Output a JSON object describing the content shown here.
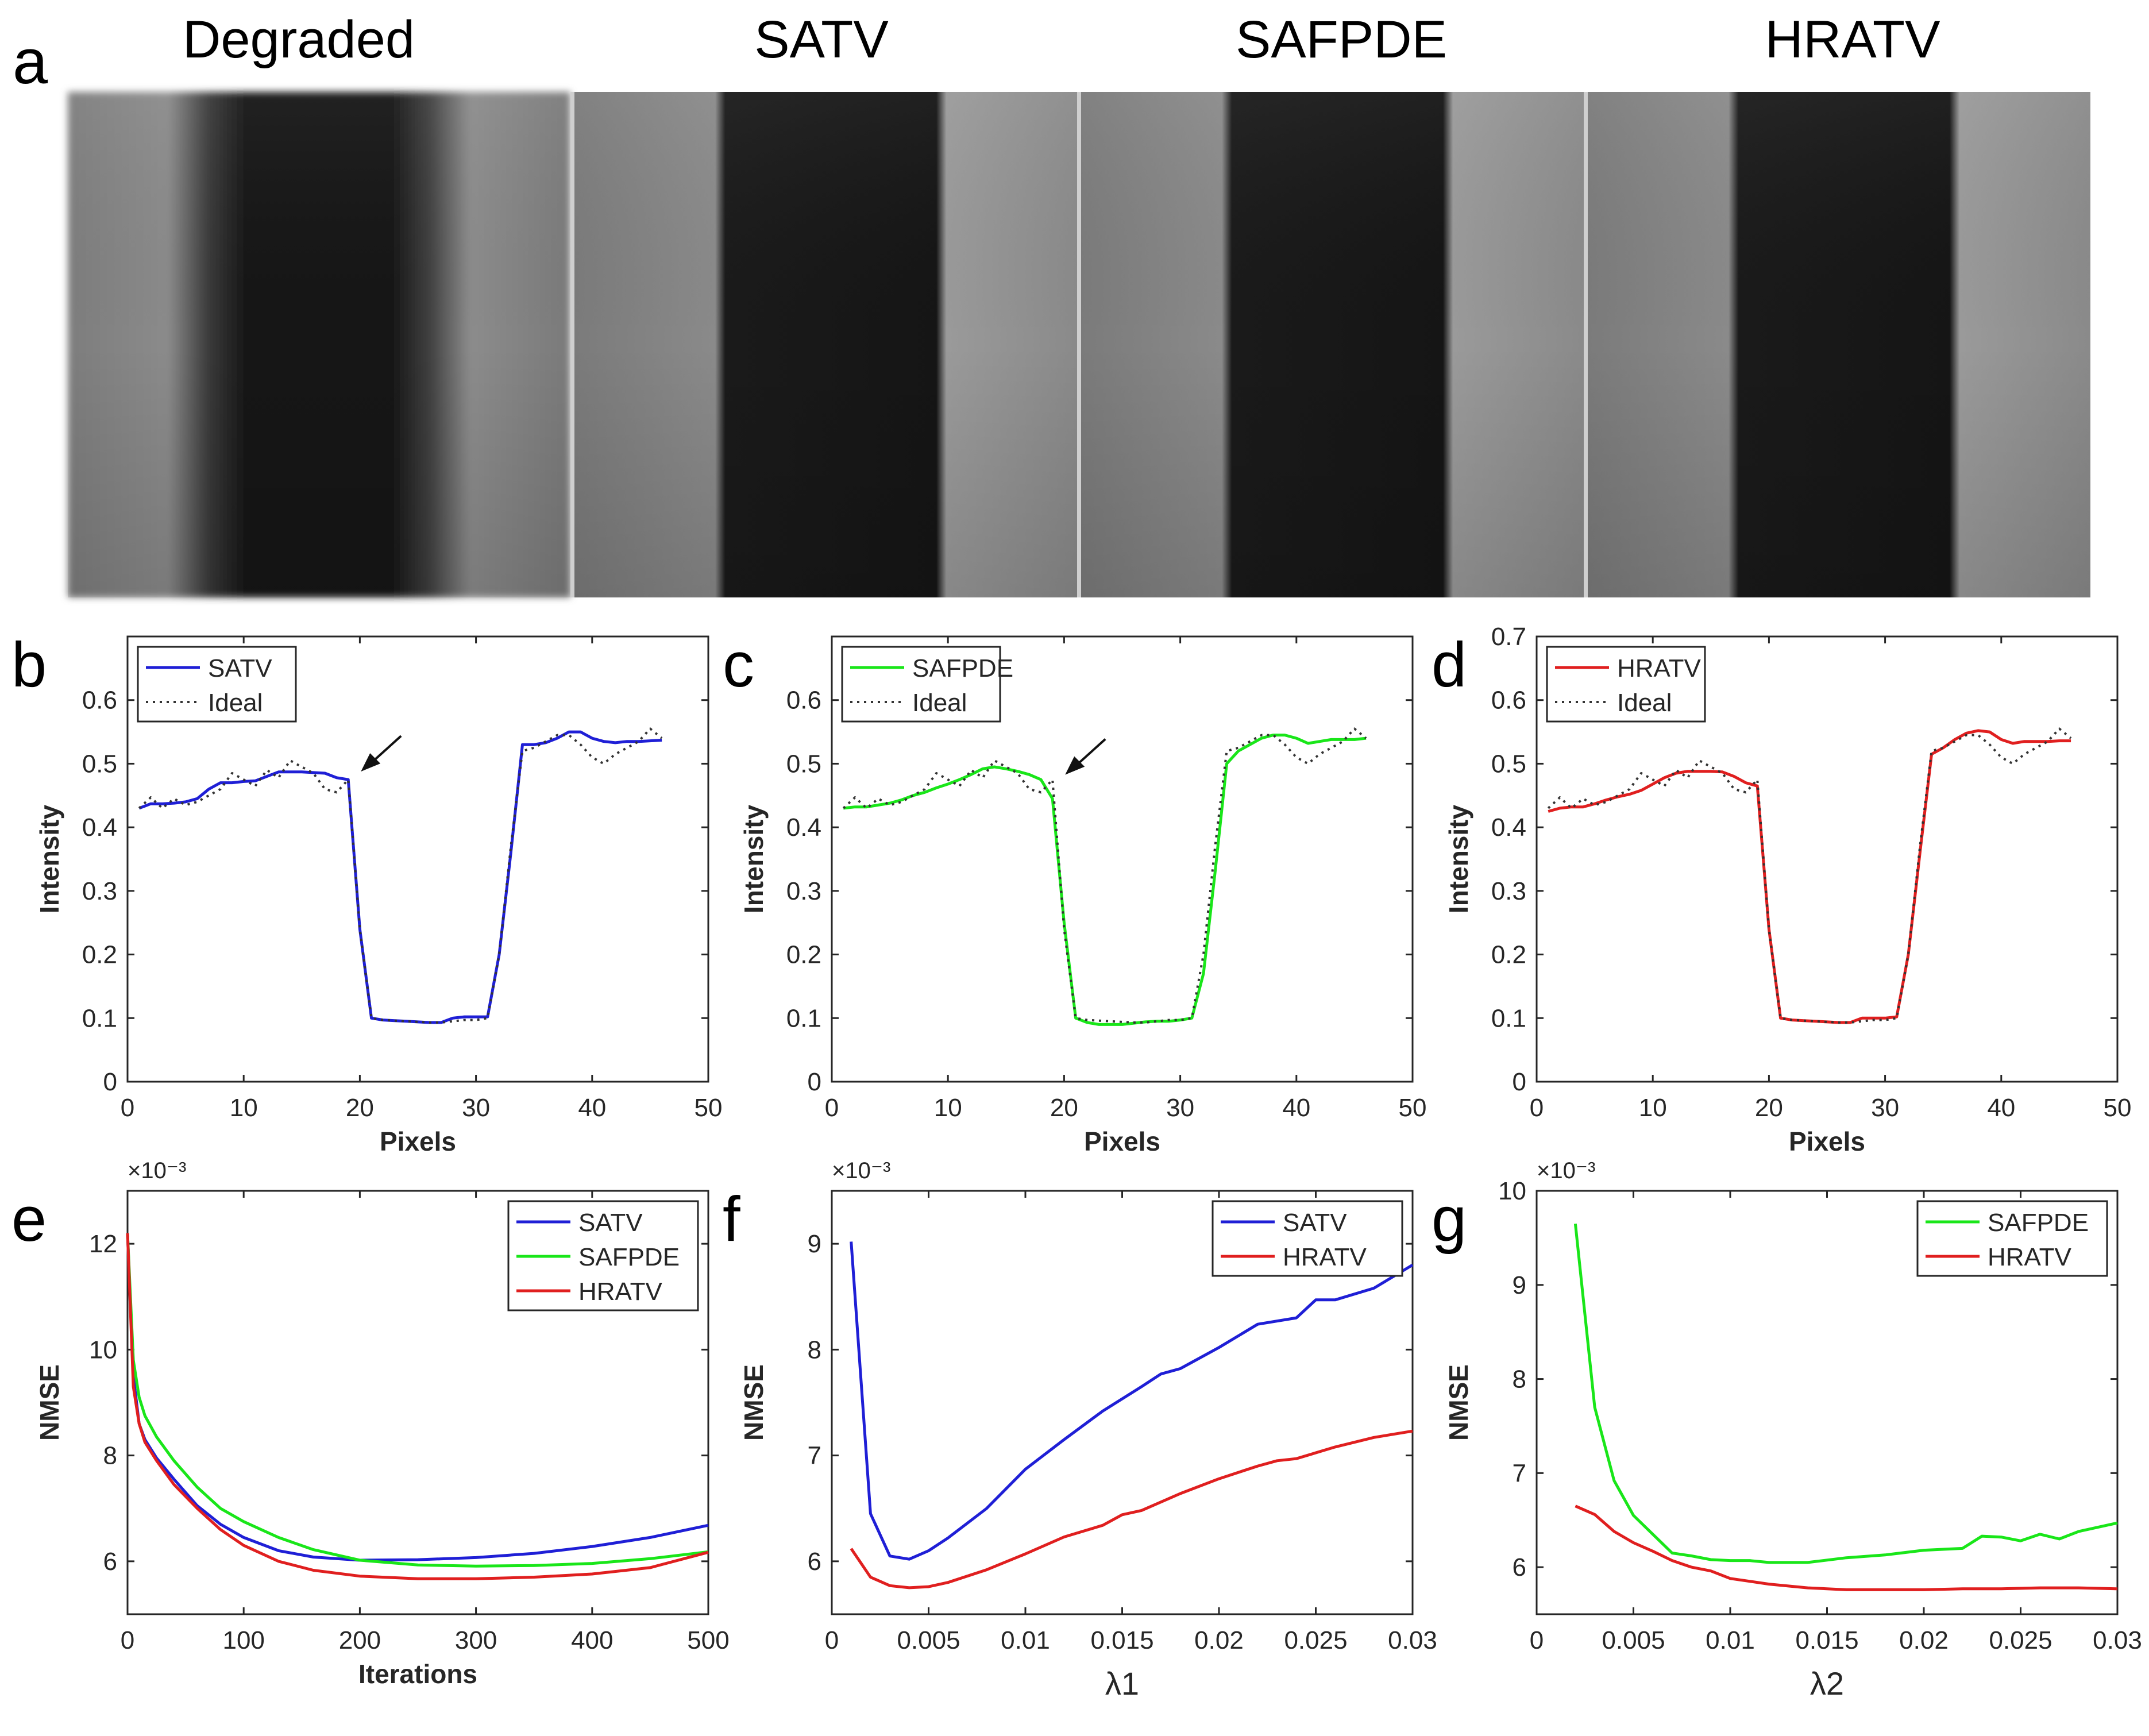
{
  "panel_a": {
    "letter": "a",
    "titles": [
      "Degraded",
      "SATV",
      "SAFPDE",
      "HRATV"
    ]
  },
  "chart_data": [
    {
      "id": "b",
      "letter": "b",
      "type": "line",
      "xlabel": "Pixels",
      "ylabel": "Intensity",
      "xlim": [
        0,
        50
      ],
      "ylim": [
        0,
        0.7
      ],
      "xticks": [
        0,
        10,
        20,
        30,
        40,
        50
      ],
      "yticks": [
        0,
        0.1,
        0.2,
        0.3,
        0.4,
        0.5,
        0.6
      ],
      "legend_position": "top-left",
      "annotation": {
        "type": "arrow",
        "at": [
          19,
          0.475
        ]
      },
      "series": [
        {
          "name": "SATV",
          "color": "#1f1fd6",
          "style": "solid",
          "x": [
            1,
            2,
            3,
            4,
            5,
            6,
            7,
            8,
            9,
            10,
            11,
            12,
            13,
            14,
            15,
            16,
            17,
            18,
            19,
            20,
            21,
            22,
            23,
            24,
            25,
            26,
            27,
            28,
            29,
            30,
            31,
            32,
            33,
            34,
            35,
            36,
            37,
            38,
            39,
            40,
            41,
            42,
            43,
            44,
            45,
            46
          ],
          "y": [
            0.43,
            0.437,
            0.437,
            0.438,
            0.44,
            0.445,
            0.46,
            0.47,
            0.47,
            0.472,
            0.473,
            0.48,
            0.487,
            0.487,
            0.487,
            0.486,
            0.485,
            0.478,
            0.475,
            0.24,
            0.1,
            0.097,
            0.096,
            0.095,
            0.094,
            0.093,
            0.093,
            0.1,
            0.102,
            0.102,
            0.102,
            0.2,
            0.36,
            0.53,
            0.53,
            0.533,
            0.54,
            0.55,
            0.55,
            0.54,
            0.535,
            0.533,
            0.535,
            0.535,
            0.536,
            0.537
          ]
        },
        {
          "name": "Ideal",
          "color": "#333333",
          "style": "dotted",
          "x": [
            1,
            2,
            3,
            4,
            5,
            6,
            7,
            8,
            9,
            10,
            11,
            12,
            13,
            14,
            15,
            16,
            17,
            18,
            19,
            20,
            21,
            22,
            23,
            24,
            25,
            26,
            27,
            28,
            29,
            30,
            31,
            32,
            33,
            34,
            35,
            36,
            37,
            38,
            39,
            40,
            41,
            42,
            43,
            44,
            45,
            46
          ],
          "y": [
            0.43,
            0.447,
            0.43,
            0.445,
            0.435,
            0.44,
            0.45,
            0.46,
            0.485,
            0.475,
            0.465,
            0.49,
            0.478,
            0.505,
            0.495,
            0.485,
            0.46,
            0.455,
            0.475,
            0.24,
            0.1,
            0.097,
            0.096,
            0.095,
            0.094,
            0.093,
            0.093,
            0.095,
            0.097,
            0.097,
            0.1,
            0.2,
            0.37,
            0.52,
            0.525,
            0.535,
            0.545,
            0.545,
            0.53,
            0.51,
            0.5,
            0.515,
            0.525,
            0.535,
            0.555,
            0.54
          ]
        }
      ]
    },
    {
      "id": "c",
      "letter": "c",
      "type": "line",
      "xlabel": "Pixels",
      "ylabel": "Intensity",
      "xlim": [
        0,
        50
      ],
      "ylim": [
        0,
        0.7
      ],
      "xticks": [
        0,
        10,
        20,
        30,
        40,
        50
      ],
      "yticks": [
        0,
        0.1,
        0.2,
        0.3,
        0.4,
        0.5,
        0.6
      ],
      "legend_position": "top-left",
      "annotation": {
        "type": "arrow",
        "at": [
          19,
          0.47
        ]
      },
      "series": [
        {
          "name": "SAFPDE",
          "color": "#19e619",
          "style": "solid",
          "x": [
            1,
            2,
            3,
            4,
            5,
            6,
            7,
            8,
            9,
            10,
            11,
            12,
            13,
            14,
            15,
            16,
            17,
            18,
            19,
            20,
            21,
            22,
            23,
            24,
            25,
            26,
            27,
            28,
            29,
            30,
            31,
            32,
            33,
            34,
            35,
            36,
            37,
            38,
            39,
            40,
            41,
            42,
            43,
            44,
            45,
            46
          ],
          "y": [
            0.43,
            0.432,
            0.432,
            0.435,
            0.438,
            0.443,
            0.45,
            0.455,
            0.462,
            0.468,
            0.475,
            0.483,
            0.492,
            0.495,
            0.492,
            0.488,
            0.483,
            0.475,
            0.445,
            0.25,
            0.1,
            0.093,
            0.09,
            0.09,
            0.09,
            0.092,
            0.094,
            0.095,
            0.095,
            0.097,
            0.1,
            0.17,
            0.33,
            0.5,
            0.52,
            0.53,
            0.54,
            0.545,
            0.545,
            0.54,
            0.532,
            0.535,
            0.538,
            0.538,
            0.538,
            0.54
          ]
        },
        {
          "name": "Ideal",
          "color": "#333333",
          "style": "dotted",
          "x": [
            1,
            2,
            3,
            4,
            5,
            6,
            7,
            8,
            9,
            10,
            11,
            12,
            13,
            14,
            15,
            16,
            17,
            18,
            19,
            20,
            21,
            22,
            23,
            24,
            25,
            26,
            27,
            28,
            29,
            30,
            31,
            32,
            33,
            34,
            35,
            36,
            37,
            38,
            39,
            40,
            41,
            42,
            43,
            44,
            45,
            46
          ],
          "y": [
            0.43,
            0.447,
            0.43,
            0.445,
            0.435,
            0.44,
            0.45,
            0.46,
            0.485,
            0.475,
            0.465,
            0.49,
            0.478,
            0.505,
            0.495,
            0.485,
            0.46,
            0.455,
            0.475,
            0.24,
            0.1,
            0.097,
            0.096,
            0.095,
            0.094,
            0.093,
            0.093,
            0.095,
            0.097,
            0.097,
            0.1,
            0.2,
            0.37,
            0.52,
            0.525,
            0.535,
            0.545,
            0.545,
            0.53,
            0.51,
            0.5,
            0.515,
            0.525,
            0.535,
            0.555,
            0.54
          ]
        }
      ]
    },
    {
      "id": "d",
      "letter": "d",
      "type": "line",
      "xlabel": "Pixels",
      "ylabel": "Intensity",
      "xlim": [
        0,
        50
      ],
      "ylim": [
        0,
        0.7
      ],
      "xticks": [
        0,
        10,
        20,
        30,
        40,
        50
      ],
      "yticks": [
        0,
        0.1,
        0.2,
        0.3,
        0.4,
        0.5,
        0.6,
        0.7
      ],
      "legend_position": "top-left",
      "series": [
        {
          "name": "HRATV",
          "color": "#e01f1f",
          "style": "solid",
          "x": [
            1,
            2,
            3,
            4,
            5,
            6,
            7,
            8,
            9,
            10,
            11,
            12,
            13,
            14,
            15,
            16,
            17,
            18,
            19,
            20,
            21,
            22,
            23,
            24,
            25,
            26,
            27,
            28,
            29,
            30,
            31,
            32,
            33,
            34,
            35,
            36,
            37,
            38,
            39,
            40,
            41,
            42,
            43,
            44,
            45,
            46
          ],
          "y": [
            0.425,
            0.43,
            0.432,
            0.432,
            0.437,
            0.443,
            0.448,
            0.452,
            0.458,
            0.468,
            0.478,
            0.485,
            0.488,
            0.488,
            0.488,
            0.487,
            0.48,
            0.47,
            0.465,
            0.24,
            0.1,
            0.097,
            0.096,
            0.095,
            0.094,
            0.093,
            0.093,
            0.1,
            0.1,
            0.1,
            0.102,
            0.2,
            0.36,
            0.515,
            0.525,
            0.538,
            0.548,
            0.552,
            0.55,
            0.538,
            0.532,
            0.535,
            0.535,
            0.535,
            0.536,
            0.536
          ]
        },
        {
          "name": "Ideal",
          "color": "#333333",
          "style": "dotted",
          "x": [
            1,
            2,
            3,
            4,
            5,
            6,
            7,
            8,
            9,
            10,
            11,
            12,
            13,
            14,
            15,
            16,
            17,
            18,
            19,
            20,
            21,
            22,
            23,
            24,
            25,
            26,
            27,
            28,
            29,
            30,
            31,
            32,
            33,
            34,
            35,
            36,
            37,
            38,
            39,
            40,
            41,
            42,
            43,
            44,
            45,
            46
          ],
          "y": [
            0.43,
            0.447,
            0.43,
            0.445,
            0.435,
            0.44,
            0.45,
            0.46,
            0.485,
            0.475,
            0.465,
            0.49,
            0.478,
            0.505,
            0.495,
            0.485,
            0.46,
            0.455,
            0.475,
            0.24,
            0.1,
            0.097,
            0.096,
            0.095,
            0.094,
            0.093,
            0.093,
            0.095,
            0.097,
            0.097,
            0.1,
            0.2,
            0.37,
            0.52,
            0.525,
            0.535,
            0.545,
            0.545,
            0.53,
            0.51,
            0.5,
            0.515,
            0.525,
            0.535,
            0.555,
            0.54
          ]
        }
      ]
    },
    {
      "id": "e",
      "letter": "e",
      "type": "line",
      "xlabel": "Iterations",
      "ylabel": "NMSE",
      "scale_label": "×10⁻³",
      "xlim": [
        0,
        500
      ],
      "ylim": [
        5,
        13
      ],
      "xticks": [
        0,
        100,
        200,
        300,
        400,
        500
      ],
      "yticks": [
        6,
        8,
        10,
        12
      ],
      "legend_position": "top-right",
      "series": [
        {
          "name": "SATV",
          "color": "#1f1fd6",
          "style": "solid",
          "x": [
            0,
            5,
            10,
            15,
            25,
            40,
            60,
            80,
            100,
            130,
            160,
            200,
            250,
            300,
            350,
            400,
            450,
            500
          ],
          "y": [
            12.2,
            9.5,
            8.6,
            8.3,
            7.95,
            7.55,
            7.05,
            6.7,
            6.45,
            6.2,
            6.08,
            6.02,
            6.03,
            6.07,
            6.15,
            6.28,
            6.45,
            6.68
          ]
        },
        {
          "name": "SAFPDE",
          "color": "#19e619",
          "style": "solid",
          "x": [
            0,
            5,
            10,
            15,
            25,
            40,
            60,
            80,
            100,
            130,
            160,
            200,
            250,
            300,
            350,
            400,
            450,
            500
          ],
          "y": [
            12.2,
            9.8,
            9.1,
            8.75,
            8.35,
            7.9,
            7.4,
            7.0,
            6.75,
            6.45,
            6.22,
            6.02,
            5.93,
            5.91,
            5.92,
            5.96,
            6.05,
            6.18
          ]
        },
        {
          "name": "HRATV",
          "color": "#e01f1f",
          "style": "solid",
          "x": [
            0,
            5,
            10,
            15,
            25,
            40,
            60,
            80,
            100,
            130,
            160,
            200,
            250,
            300,
            350,
            400,
            450,
            500
          ],
          "y": [
            12.2,
            9.3,
            8.6,
            8.25,
            7.9,
            7.45,
            7.0,
            6.6,
            6.3,
            6.0,
            5.83,
            5.72,
            5.67,
            5.67,
            5.7,
            5.76,
            5.88,
            6.17
          ]
        }
      ]
    },
    {
      "id": "f",
      "letter": "f",
      "type": "line",
      "xlabel": "λ1",
      "ylabel": "NMSE",
      "scale_label": "×10⁻³",
      "xlim": [
        0,
        0.03
      ],
      "ylim": [
        5.5,
        9.5
      ],
      "xticks": [
        0,
        0.005,
        0.01,
        0.015,
        0.02,
        0.025,
        0.03
      ],
      "yticks": [
        6,
        7,
        8,
        9
      ],
      "legend_position": "top-right",
      "series": [
        {
          "name": "SATV",
          "color": "#1f1fd6",
          "style": "solid",
          "x": [
            0.001,
            0.002,
            0.003,
            0.004,
            0.005,
            0.006,
            0.008,
            0.01,
            0.012,
            0.014,
            0.016,
            0.017,
            0.018,
            0.02,
            0.022,
            0.024,
            0.025,
            0.026,
            0.028,
            0.03
          ],
          "y": [
            9.02,
            6.45,
            6.05,
            6.02,
            6.1,
            6.22,
            6.5,
            6.87,
            7.15,
            7.42,
            7.65,
            7.77,
            7.82,
            8.02,
            8.24,
            8.3,
            8.47,
            8.47,
            8.58,
            8.8
          ]
        },
        {
          "name": "HRATV",
          "color": "#e01f1f",
          "style": "solid",
          "x": [
            0.001,
            0.002,
            0.003,
            0.004,
            0.005,
            0.006,
            0.008,
            0.01,
            0.012,
            0.014,
            0.015,
            0.016,
            0.018,
            0.02,
            0.022,
            0.023,
            0.024,
            0.026,
            0.028,
            0.03
          ],
          "y": [
            6.12,
            5.85,
            5.77,
            5.75,
            5.76,
            5.8,
            5.92,
            6.07,
            6.23,
            6.34,
            6.44,
            6.48,
            6.64,
            6.78,
            6.9,
            6.95,
            6.97,
            7.08,
            7.17,
            7.23
          ]
        }
      ]
    },
    {
      "id": "g",
      "letter": "g",
      "type": "line",
      "xlabel": "λ2",
      "ylabel": "NMSE",
      "scale_label": "×10⁻³",
      "xlim": [
        0,
        0.03
      ],
      "ylim": [
        5.5,
        10
      ],
      "xticks": [
        0,
        0.005,
        0.01,
        0.015,
        0.02,
        0.025,
        0.03
      ],
      "yticks": [
        6,
        7,
        8,
        9,
        10
      ],
      "legend_position": "top-right",
      "series": [
        {
          "name": "SAFPDE",
          "color": "#19e619",
          "style": "solid",
          "x": [
            0.002,
            0.003,
            0.004,
            0.005,
            0.006,
            0.007,
            0.008,
            0.009,
            0.01,
            0.011,
            0.012,
            0.013,
            0.014,
            0.016,
            0.018,
            0.02,
            0.022,
            0.023,
            0.024,
            0.025,
            0.026,
            0.027,
            0.028,
            0.03
          ],
          "y": [
            9.65,
            7.7,
            6.92,
            6.55,
            6.35,
            6.15,
            6.12,
            6.08,
            6.07,
            6.07,
            6.05,
            6.05,
            6.05,
            6.1,
            6.13,
            6.18,
            6.2,
            6.33,
            6.32,
            6.28,
            6.35,
            6.3,
            6.38,
            6.47
          ]
        },
        {
          "name": "HRATV",
          "color": "#e01f1f",
          "style": "solid",
          "x": [
            0.002,
            0.003,
            0.004,
            0.005,
            0.006,
            0.007,
            0.008,
            0.009,
            0.01,
            0.011,
            0.012,
            0.014,
            0.016,
            0.018,
            0.02,
            0.022,
            0.024,
            0.026,
            0.028,
            0.03
          ],
          "y": [
            6.65,
            6.56,
            6.38,
            6.26,
            6.17,
            6.07,
            6.0,
            5.96,
            5.88,
            5.85,
            5.82,
            5.78,
            5.76,
            5.76,
            5.76,
            5.77,
            5.77,
            5.78,
            5.78,
            5.77
          ]
        }
      ]
    }
  ]
}
